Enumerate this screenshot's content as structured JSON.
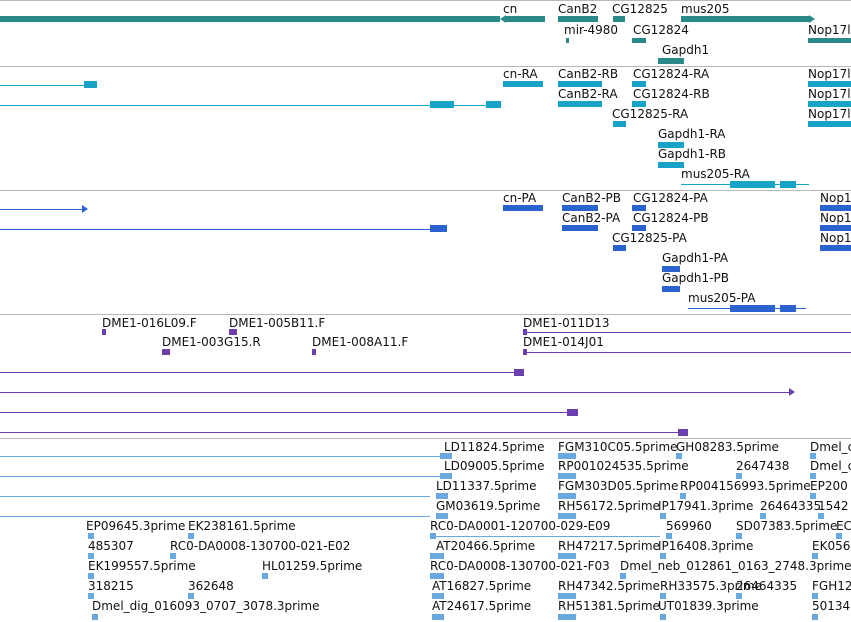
{
  "colors": {
    "gene": "#2a8a8a",
    "transcript": "#17a2c8",
    "protein": "#2a62d0",
    "clone": "#6b3fb0",
    "est": "#6aa9de",
    "border": "#b8b8b8"
  },
  "tracks": {
    "genes": {
      "labels": [
        "cn",
        "CanB2",
        "CG12825",
        "mus205",
        "mir-4980",
        "CG12824",
        "Nop17l",
        "Gapdh1"
      ]
    },
    "transcripts": {
      "labels": [
        "cn-RA",
        "CanB2-RB",
        "CG12824-RA",
        "Nop17l",
        "CanB2-RA",
        "CG12824-RB",
        "Nop17l",
        "CG12825-RA",
        "Nop17l",
        "Gapdh1-RA",
        "Gapdh1-RB",
        "mus205-RA"
      ]
    },
    "proteins": {
      "labels": [
        "cn-PA",
        "CanB2-PB",
        "CG12824-PA",
        "Nop1",
        "CanB2-PA",
        "CG12824-PB",
        "Nop1",
        "CG12825-PA",
        "Nop1",
        "Gapdh1-PA",
        "Gapdh1-PB",
        "mus205-PA"
      ]
    },
    "clones": {
      "labels": [
        "DME1-016L09.F",
        "DME1-005B11.F",
        "DME1-011D13",
        "DME1-003G15.R",
        "DME1-008A11.F",
        "DME1-014J01"
      ]
    },
    "ests": {
      "labels": [
        "LD11824.5prime",
        "FGM310C05.5prime",
        "GH08283.5prime",
        "Dmel_c",
        "LD09005.5prime",
        "RP001024535.5prime",
        "2647438",
        "Dmel_c",
        "LD11337.5prime",
        "FGM303D05.5prime",
        "RP004156993.5prime",
        "EP200",
        "GM03619.5prime",
        "RH56172.5prime",
        "IP17941.3prime",
        "26464335",
        "1542",
        "EP09645.3prime",
        "EK238161.5prime",
        "RC0-DA0001-120700-029-E09",
        "569960",
        "SD07383.5prime",
        "EC",
        "485307",
        "RC0-DA0008-130700-021-E02",
        "AT20466.5prime",
        "RH47217.5prime",
        "IP16408.3prime",
        "EK056",
        "EK199557.5prime",
        "HL01259.5prime",
        "RC0-DA0008-130700-021-F03",
        "Dmel_neb_012861_0163_2748.3prime",
        "318215",
        "362648",
        "AT16827.5prime",
        "RH47342.5prime",
        "RH33575.3prime",
        "26464335",
        "FGH12",
        "Dmel_dig_016093_0707_3078.3prime",
        "AT24617.5prime",
        "RH51381.5prime",
        "UT01839.3prime",
        "50134"
      ]
    }
  }
}
